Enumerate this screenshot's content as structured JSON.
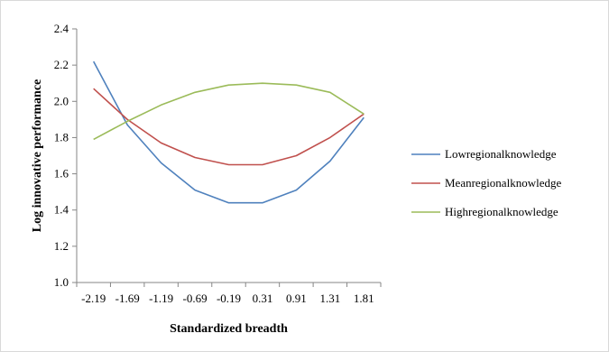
{
  "chart_data": {
    "type": "line",
    "x": [
      "-2.19",
      "-1.69",
      "-1.19",
      "-0.69",
      "-0.19",
      "0.31",
      "0.91",
      "1.31",
      "1.81"
    ],
    "series": [
      {
        "name": "Lowregionalknowledge",
        "color": "#4f81bd",
        "values": [
          2.22,
          1.87,
          1.66,
          1.51,
          1.44,
          1.44,
          1.51,
          1.67,
          1.91
        ]
      },
      {
        "name": "Meanregionalknowledge",
        "color": "#c0504d",
        "values": [
          2.07,
          1.9,
          1.77,
          1.69,
          1.65,
          1.65,
          1.7,
          1.8,
          1.93
        ]
      },
      {
        "name": "Highregionalknowledge",
        "color": "#9bbb59",
        "values": [
          1.79,
          1.89,
          1.98,
          2.05,
          2.09,
          2.1,
          2.09,
          2.05,
          1.93
        ]
      }
    ],
    "yticks": [
      "1.0",
      "1.2",
      "1.4",
      "1.6",
      "1.8",
      "2.0",
      "2.2",
      "2.4"
    ],
    "ylim": [
      1.0,
      2.4
    ],
    "xlabel": "Standardized breadth",
    "ylabel": "Log innovative performance",
    "grid": false,
    "legend_position": "right"
  }
}
